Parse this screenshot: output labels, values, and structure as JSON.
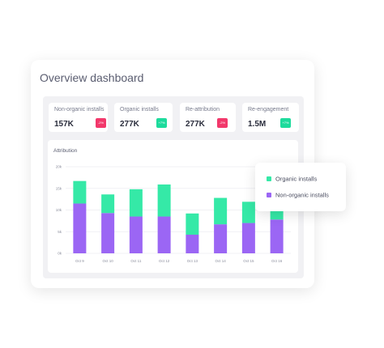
{
  "dashboard": {
    "title": "Overview dashboard",
    "stats": [
      {
        "label": "Non-organic installs",
        "value": "157K",
        "badge": "-2%",
        "trend": "down"
      },
      {
        "label": "Organic installs",
        "value": "277K",
        "badge": "+7%",
        "trend": "up"
      },
      {
        "label": "Re-attribution",
        "value": "277K",
        "badge": "-2%",
        "trend": "down"
      },
      {
        "label": "Re-engagement",
        "value": "1.5M",
        "badge": "+7%",
        "trend": "up"
      }
    ]
  },
  "colors": {
    "organic": "#35e9a7",
    "non_organic": "#9b66f4",
    "badge_down": "#f2386b",
    "badge_up": "#1ddb9c"
  },
  "chart_data": {
    "type": "bar",
    "stacked": true,
    "title": "Attribution",
    "categories": [
      "Oct 9",
      "Oct 10",
      "Oct 11",
      "Oct 12",
      "Oct 13",
      "Oct 14",
      "Oct 15",
      "Oct 16"
    ],
    "yticks": [
      "0k",
      "5k",
      "10k",
      "15k",
      "20k"
    ],
    "ylim": [
      0,
      20000
    ],
    "grid": true,
    "series": [
      {
        "name": "Non-organic installs",
        "values": [
          11500,
          9300,
          8500,
          8500,
          4300,
          6700,
          7000,
          7800
        ]
      },
      {
        "name": "Organic installs",
        "values": [
          5200,
          4300,
          6300,
          7400,
          4900,
          6100,
          4900,
          2500
        ]
      }
    ],
    "legend": [
      {
        "label": "Organic installs",
        "color": "#35e9a7"
      },
      {
        "label": "Non-organic installs",
        "color": "#9b66f4"
      }
    ],
    "legend_position": "right"
  }
}
